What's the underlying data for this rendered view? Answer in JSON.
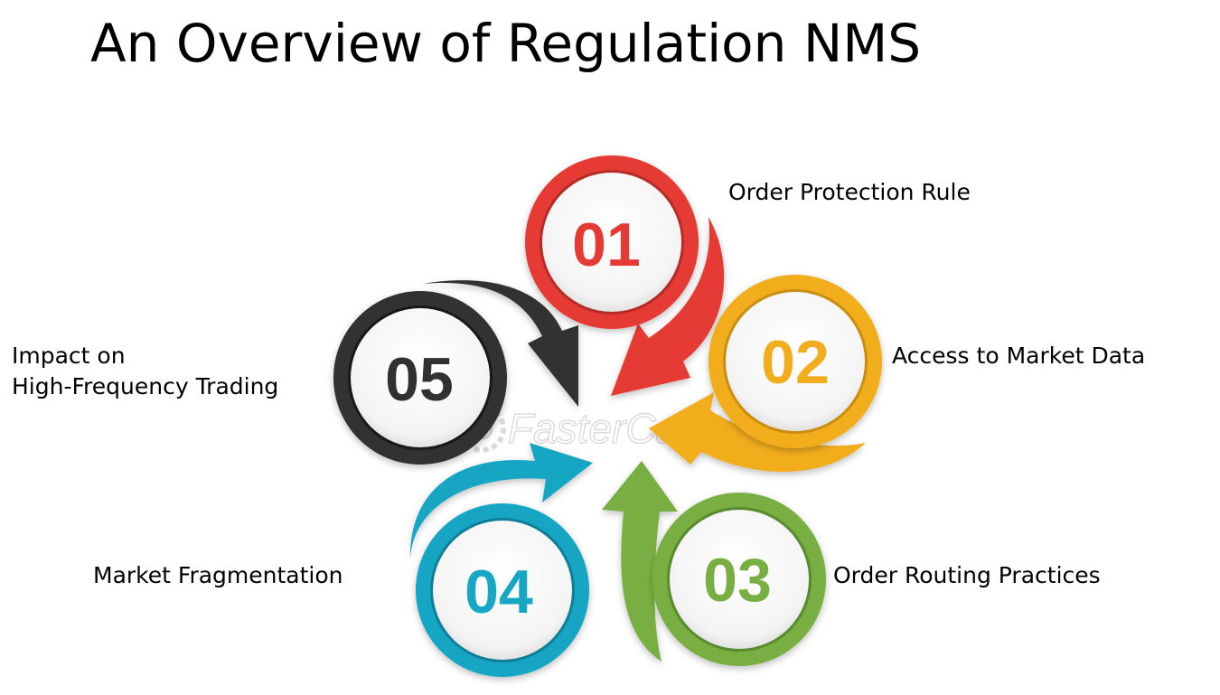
{
  "title": "An Overview of Regulation NMS",
  "watermark": "FasterCapital",
  "steps": [
    {
      "number": "01",
      "label": "Order Protection Rule",
      "color": "#e63b35",
      "dark": "#b52b27"
    },
    {
      "number": "02",
      "label": "Access to Market Data",
      "color": "#f2ad1c",
      "dark": "#c98d10"
    },
    {
      "number": "03",
      "label": "Order Routing Practices",
      "color": "#79af42",
      "dark": "#5a8a2e"
    },
    {
      "number": "04",
      "label": "Market Fragmentation",
      "color": "#17a6c4",
      "dark": "#0f7f98"
    },
    {
      "number": "05",
      "label_line1": "Impact on",
      "label_line2": "High-Frequency Trading",
      "color": "#333030",
      "dark": "#1a1818"
    }
  ]
}
